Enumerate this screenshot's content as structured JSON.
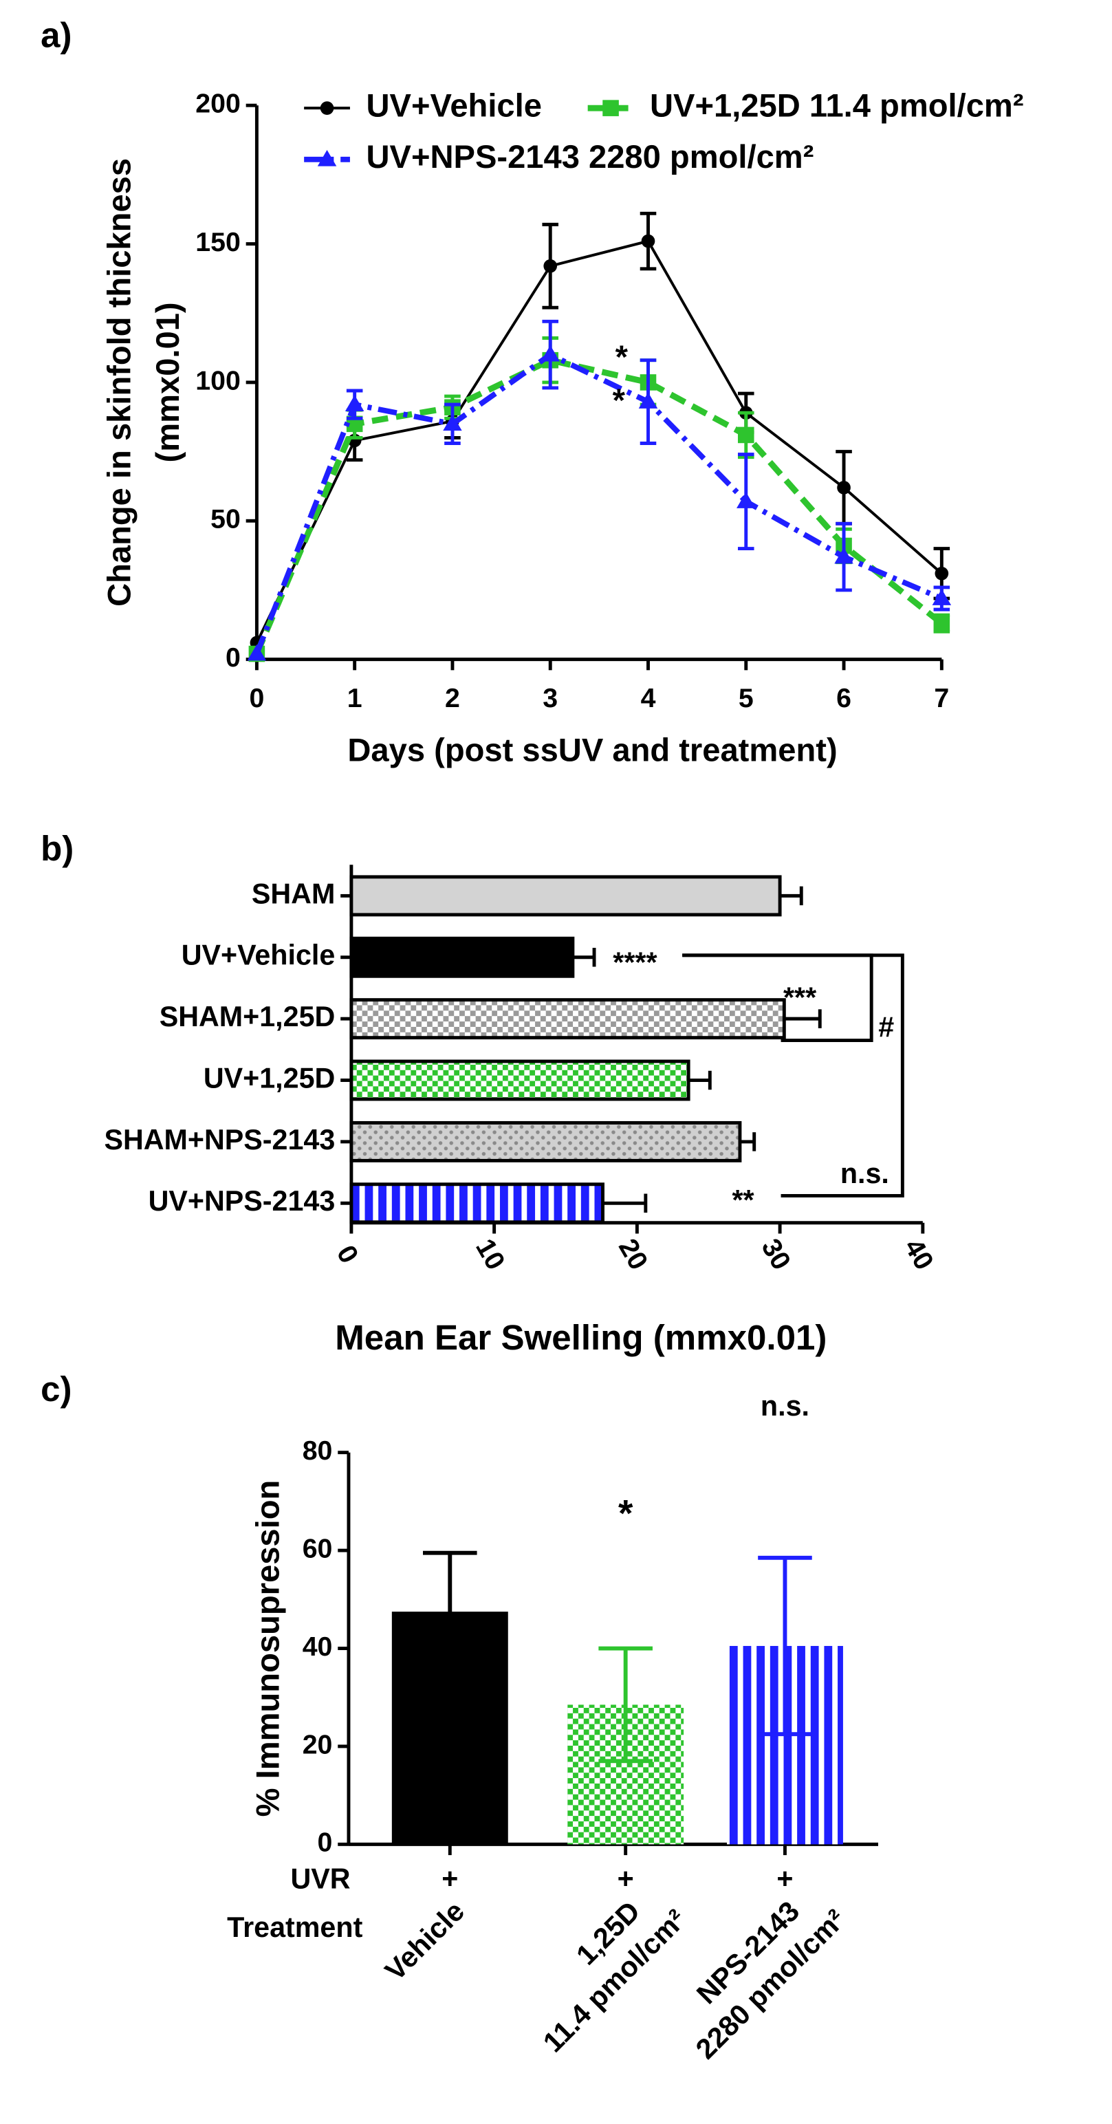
{
  "chart_data": [
    {
      "type": "line",
      "panel_label": "a)",
      "ylabel": [
        "Change in skinfold thickness",
        "(mmx0.01)"
      ],
      "xlabel": "Days (post ssUV and treatment)",
      "x": [
        0,
        1,
        2,
        3,
        4,
        5,
        6,
        7
      ],
      "xlim": [
        0,
        7
      ],
      "xticks": [
        0,
        1,
        2,
        3,
        4,
        5,
        6,
        7
      ],
      "ylim": [
        0,
        200
      ],
      "yticks": [
        0,
        50,
        100,
        150,
        200
      ],
      "series": [
        {
          "name": "UV+Vehicle",
          "color": "#000000",
          "marker": "circle",
          "linestyle": "solid",
          "values": [
            6,
            79,
            86,
            142,
            151,
            89,
            62,
            31
          ],
          "errors": [
            0,
            7,
            6,
            15,
            10,
            7,
            13,
            9
          ]
        },
        {
          "name": "UV+1,25D 11.4 pmol/cm²",
          "color": "#2ec42e",
          "marker": "square",
          "linestyle": "dashed",
          "values": [
            2,
            85,
            91,
            108,
            100,
            81,
            41,
            13
          ],
          "errors": [
            0,
            5,
            4,
            8,
            8,
            8,
            6,
            3
          ]
        },
        {
          "name": "UV+NPS-2143 2280 pmol/cm²",
          "color": "#1f1fff",
          "marker": "triangle",
          "linestyle": "dashdot",
          "values": [
            2,
            92,
            85,
            110,
            93,
            57,
            37,
            22
          ],
          "errors": [
            0,
            5,
            7,
            12,
            15,
            17,
            12,
            4
          ]
        }
      ],
      "annotations": [
        "*",
        "*"
      ]
    },
    {
      "type": "hbar",
      "panel_label": "b)",
      "xlabel": "Mean Ear Swelling (mmx0.01)",
      "categories": [
        "SHAM",
        "UV+Vehicle",
        "SHAM+1,25D",
        "UV+1,25D",
        "SHAM+NPS-2143",
        "UV+NPS-2143"
      ],
      "values": [
        30,
        15.5,
        30.3,
        23.6,
        27.2,
        17.6
      ],
      "errors": [
        1.5,
        1.5,
        2.5,
        1.5,
        1,
        3
      ],
      "colors": [
        "#d3d3d3",
        "#000000",
        "#9a9a9a",
        "#2ec42e",
        "#8a8a8a",
        "#1f1fff"
      ],
      "patterns": [
        "solid",
        "solid",
        "checker",
        "checker",
        "dots",
        "stripes"
      ],
      "xlim": [
        0,
        40
      ],
      "xticks": [
        0,
        10,
        20,
        30,
        40
      ],
      "annotations": [
        "****",
        "***",
        "**",
        "#",
        "n.s."
      ]
    },
    {
      "type": "bar",
      "panel_label": "c)",
      "ylabel": "% Immunosupression",
      "categories": [
        [
          "Vehicle"
        ],
        [
          "1,25D",
          "11.4 pmol/cm²"
        ],
        [
          "NPS-2143",
          "2280 pmol/cm²"
        ]
      ],
      "values": [
        47.5,
        28.5,
        40.5
      ],
      "errors": [
        12,
        11.5,
        18
      ],
      "colors": [
        "#000000",
        "#2ec42e",
        "#1f1fff"
      ],
      "patterns": [
        "solid",
        "checker",
        "stripes"
      ],
      "ylim": [
        0,
        80
      ],
      "yticks": [
        0,
        20,
        40,
        60,
        80
      ],
      "rows": [
        {
          "label": "UVR",
          "values": [
            "+",
            "+",
            "+"
          ]
        },
        {
          "label": "Treatment"
        }
      ],
      "annotations": [
        "*",
        "n.s."
      ]
    }
  ]
}
